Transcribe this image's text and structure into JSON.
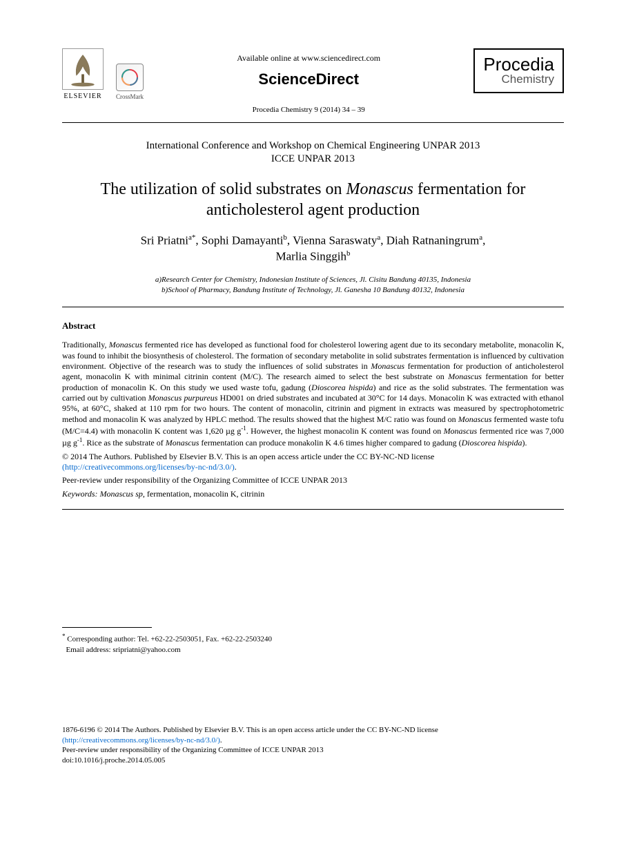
{
  "header": {
    "elsevier_label": "ELSEVIER",
    "crossmark_label": "CrossMark",
    "available_text": "Available online at www.sciencedirect.com",
    "sciencedirect": "ScienceDirect",
    "citation": "Procedia Chemistry 9 (2014) 34 – 39",
    "procedia_line1": "Procedia",
    "procedia_line2": "Chemistry"
  },
  "conference": {
    "line1": "International Conference and Workshop on Chemical Engineering UNPAR 2013",
    "line2": "ICCE UNPAR 2013"
  },
  "title": {
    "pre": "The utilization of solid substrates on ",
    "ital": "Monascus",
    "post": " fermentation for anticholesterol agent production"
  },
  "authors": {
    "a1": "Sri Priatni",
    "a1_sup": "a*",
    "a2": "Sophi Damayanti",
    "a2_sup": "b",
    "a3": "Vienna Saraswaty",
    "a3_sup": "a",
    "a4": "Diah Ratnaningrum",
    "a4_sup": "a",
    "a5": "Marlia Singgih",
    "a5_sup": "b"
  },
  "affiliations": {
    "a": "a)Research Center for Chemistry, Indonesian Institute of Sciences, Jl. Cisitu Bandung 40135, Indonesia",
    "b": "b)School of Pharmacy, Bandung Institute of Technology, Jl. Ganesha 10 Bandung 40132, Indonesia"
  },
  "abstract": {
    "label": "Abstract",
    "body_parts": [
      {
        "t": "Traditionally, "
      },
      {
        "t": "Monascus",
        "i": true
      },
      {
        "t": " fermented rice has developed as functional food for cholesterol lowering agent due to its secondary metabolite, monacolin K, was found to inhibit the biosynthesis of cholesterol. The formation of secondary metabolite in solid substrates fermentation is influenced by cultivation environment. Objective of the research was to study  the influences of solid substrates in "
      },
      {
        "t": "Monascus",
        "i": true
      },
      {
        "t": " fermentation for production of anticholesterol agent, monacolin K with minimal citrinin content (M/C). The research aimed to select the best substrate on "
      },
      {
        "t": "Monascus",
        "i": true
      },
      {
        "t": " fermentation for better production of monacolin K. On this study we used waste tofu, gadung ("
      },
      {
        "t": "Dioscorea hispida",
        "i": true
      },
      {
        "t": ") and rice as the solid substrates. The fermentation was carried out by cultivation "
      },
      {
        "t": "Monascus purpureus",
        "i": true
      },
      {
        "t": " HD001 on dried substrates and incubated at 30°C for 14 days. Monacolin K was extracted with ethanol 95%, at 60°C, shaked at 110 rpm for two hours. The content of monacolin, citrinin and pigment in extracts was  measured by spectrophotometric method and monacolin K was analyzed by HPLC method.  The results showed that the highest M/C ratio was found on "
      },
      {
        "t": "Monascus",
        "i": true
      },
      {
        "t": " fermented waste tofu (M/C=4.4) with monacolin K content was 1,620 µg g"
      },
      {
        "t": "-1",
        "sup": true
      },
      {
        "t": ". However, the highest monacolin K content was found on "
      },
      {
        "t": "Monascus",
        "i": true
      },
      {
        "t": " fermented rice was 7,000 µg g"
      },
      {
        "t": "-1",
        "sup": true
      },
      {
        "t": ". Rice as the substrate of "
      },
      {
        "t": "Monascus",
        "i": true
      },
      {
        "t": " fermentation can produce monakolin K 4.6 times higher compared to gadung ("
      },
      {
        "t": "Dioscorea hispida",
        "i": true
      },
      {
        "t": ")."
      }
    ]
  },
  "copyright": {
    "line": "© 2014 The Authors. Published by Elsevier B.V. This is an open access article under the CC BY-NC-ND license",
    "link_text": "(http://creativecommons.org/licenses/by-nc-nd/3.0/)",
    "link_href": "http://creativecommons.org/licenses/by-nc-nd/3.0/"
  },
  "peer_review": "Peer-review under responsibility of the Organizing Committee of ICCE UNPAR 2013",
  "keywords": {
    "label": "Keywords: ",
    "ital": "Monascus sp",
    "rest": ", fermentation, monacolin K, citrinin"
  },
  "footnote": {
    "corr": "Corresponding author: Tel. +62-22-2503051, Fax. +62-22-2503240",
    "email_label": "Email address: ",
    "email": "sripriatni@yahoo.com"
  },
  "footer": {
    "issn_line": "1876-6196 © 2014 The Authors. Published by Elsevier B.V. This is an open access article under the CC BY-NC-ND license",
    "link_text": "(http://creativecommons.org/licenses/by-nc-nd/3.0/)",
    "link_href": "http://creativecommons.org/licenses/by-nc-nd/3.0/",
    "peer": "Peer-review under responsibility of the Organizing Committee of ICCE UNPAR 2013",
    "doi": "doi:10.1016/j.proche.2014.05.005"
  },
  "colors": {
    "text": "#000000",
    "link": "#0066cc",
    "background": "#ffffff",
    "muted": "#555555"
  },
  "fonts": {
    "body_family": "Times New Roman",
    "title_size_pt": 24,
    "author_size_pt": 17,
    "abstract_size_pt": 12,
    "affil_size_pt": 11
  }
}
